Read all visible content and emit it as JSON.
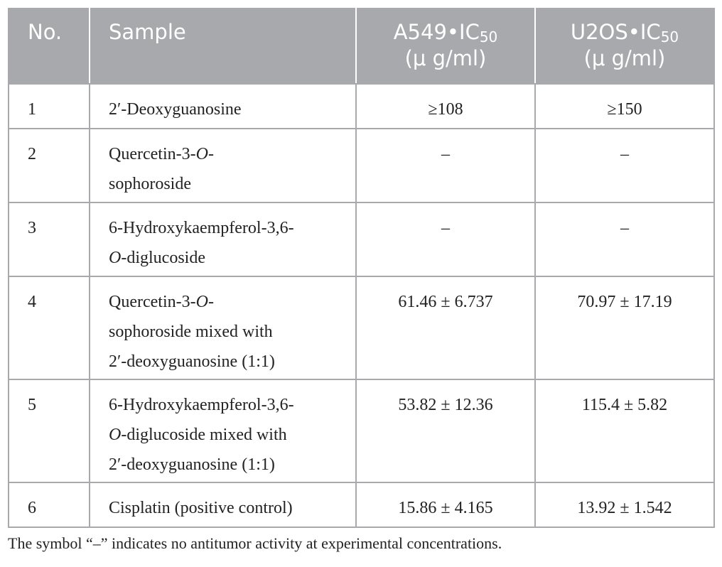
{
  "table": {
    "header": [
      {
        "lines": [
          [
            {
              "text": "No."
            }
          ]
        ]
      },
      {
        "lines": [
          [
            {
              "text": "Sample"
            }
          ]
        ]
      },
      {
        "lines": [
          [
            {
              "text": "A549•IC"
            },
            {
              "text": "50",
              "sub": true
            }
          ],
          [
            {
              "text": "(μ g/ml)"
            }
          ]
        ]
      },
      {
        "lines": [
          [
            {
              "text": "U2OS•IC"
            },
            {
              "text": "50",
              "sub": true
            }
          ],
          [
            {
              "text": "(μ g/ml)"
            }
          ]
        ]
      }
    ],
    "rows": [
      [
        {
          "lines": [
            [
              {
                "text": "1"
              }
            ]
          ]
        },
        {
          "lines": [
            [
              {
                "text": "2′-Deoxyguanosine"
              }
            ]
          ]
        },
        {
          "lines": [
            [
              {
                "text": "≥108"
              }
            ]
          ]
        },
        {
          "lines": [
            [
              {
                "text": "≥150"
              }
            ]
          ]
        }
      ],
      [
        {
          "lines": [
            [
              {
                "text": "2"
              }
            ]
          ]
        },
        {
          "lines": [
            [
              {
                "text": "Quercetin-3-"
              },
              {
                "text": "O",
                "italic": true
              },
              {
                "text": "-"
              }
            ],
            [
              {
                "text": "sophoroside"
              }
            ]
          ]
        },
        {
          "lines": [
            [
              {
                "text": "–"
              }
            ]
          ]
        },
        {
          "lines": [
            [
              {
                "text": "–"
              }
            ]
          ]
        }
      ],
      [
        {
          "lines": [
            [
              {
                "text": "3"
              }
            ]
          ]
        },
        {
          "lines": [
            [
              {
                "text": "6-Hydroxykaempferol-3,6-"
              }
            ],
            [
              {
                "text": "O",
                "italic": true
              },
              {
                "text": "-diglucoside"
              }
            ]
          ]
        },
        {
          "lines": [
            [
              {
                "text": "–"
              }
            ]
          ]
        },
        {
          "lines": [
            [
              {
                "text": "–"
              }
            ]
          ]
        }
      ],
      [
        {
          "lines": [
            [
              {
                "text": "4"
              }
            ]
          ]
        },
        {
          "lines": [
            [
              {
                "text": "Quercetin-3-"
              },
              {
                "text": "O",
                "italic": true
              },
              {
                "text": "-"
              }
            ],
            [
              {
                "text": "sophoroside mixed with"
              }
            ],
            [
              {
                "text": "2′-deoxyguanosine (1:1)"
              }
            ]
          ]
        },
        {
          "lines": [
            [
              {
                "text": "61.46 ± 6.737"
              }
            ]
          ]
        },
        {
          "lines": [
            [
              {
                "text": "70.97 ± 17.19"
              }
            ]
          ]
        }
      ],
      [
        {
          "lines": [
            [
              {
                "text": "5"
              }
            ]
          ]
        },
        {
          "lines": [
            [
              {
                "text": "6-Hydroxykaempferol-3,6-"
              }
            ],
            [
              {
                "text": "O",
                "italic": true
              },
              {
                "text": "-diglucoside mixed with"
              }
            ],
            [
              {
                "text": "2′-deoxyguanosine (1:1)"
              }
            ]
          ]
        },
        {
          "lines": [
            [
              {
                "text": "53.82 ± 12.36"
              }
            ]
          ]
        },
        {
          "lines": [
            [
              {
                "text": "115.4 ± 5.82"
              }
            ]
          ]
        }
      ],
      [
        {
          "lines": [
            [
              {
                "text": "6"
              }
            ]
          ]
        },
        {
          "lines": [
            [
              {
                "text": "Cisplatin (positive control)"
              }
            ]
          ]
        },
        {
          "lines": [
            [
              {
                "text": "15.86 ± 4.165"
              }
            ]
          ]
        },
        {
          "lines": [
            [
              {
                "text": "13.92 ± 1.542"
              }
            ]
          ]
        }
      ]
    ],
    "footnote": "The symbol “–” indicates no antitumor activity at experimental concentrations."
  }
}
